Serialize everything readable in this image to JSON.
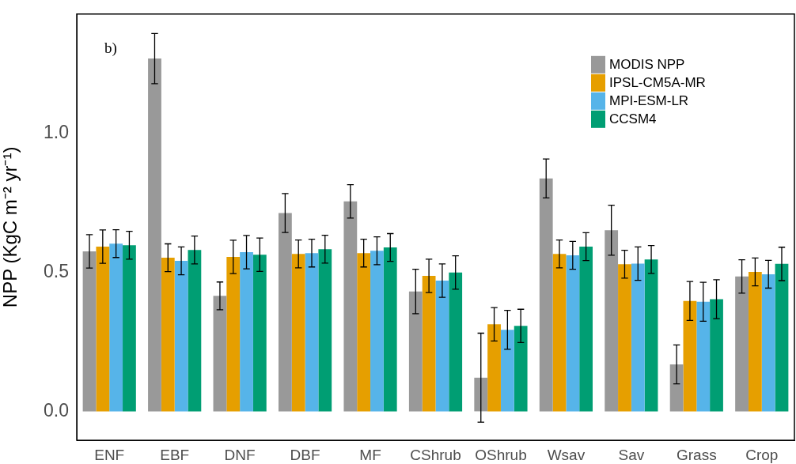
{
  "chart_data": {
    "type": "bar",
    "categories": [
      "ENF",
      "EBF",
      "DNF",
      "DBF",
      "MF",
      "CShrub",
      "OShrub",
      "Wsav",
      "Sav",
      "Grass",
      "Crop"
    ],
    "ylabel": "NPP (KgC m⁻² yr⁻¹)",
    "annotations": [
      "b)"
    ],
    "ylim": [
      -0.104,
      1.428
    ],
    "yticks": [
      {
        "value": 0,
        "label": "0.0"
      },
      {
        "value": 0.5,
        "label": "0.5"
      },
      {
        "value": 1,
        "label": "1.0"
      }
    ],
    "grid": false,
    "legend": "top right",
    "series": [
      {
        "name": "MODIS NPP",
        "color": "#999999",
        "values": [
          0.575,
          1.268,
          0.415,
          0.713,
          0.755,
          0.431,
          0.121,
          0.837,
          0.651,
          0.169,
          0.485
        ],
        "errors": [
          0.06,
          0.09,
          0.05,
          0.07,
          0.06,
          0.08,
          0.16,
          0.07,
          0.09,
          0.07,
          0.06
        ]
      },
      {
        "name": "IPSL-CM5A-MR",
        "color": "#e69f00",
        "values": [
          0.592,
          0.552,
          0.555,
          0.566,
          0.569,
          0.487,
          0.313,
          0.566,
          0.529,
          0.397,
          0.501
        ],
        "errors": [
          0.06,
          0.05,
          0.06,
          0.05,
          0.05,
          0.06,
          0.06,
          0.05,
          0.05,
          0.07,
          0.05
        ]
      },
      {
        "name": "MPI-ESM-LR",
        "color": "#56b4e9",
        "values": [
          0.603,
          0.541,
          0.572,
          0.569,
          0.577,
          0.47,
          0.293,
          0.561,
          0.531,
          0.394,
          0.493
        ],
        "errors": [
          0.05,
          0.05,
          0.06,
          0.05,
          0.05,
          0.06,
          0.07,
          0.05,
          0.06,
          0.07,
          0.05
        ]
      },
      {
        "name": "CCSM4",
        "color": "#009e73",
        "values": [
          0.597,
          0.58,
          0.563,
          0.583,
          0.589,
          0.499,
          0.307,
          0.592,
          0.546,
          0.403,
          0.53
        ],
        "errors": [
          0.05,
          0.05,
          0.06,
          0.05,
          0.05,
          0.06,
          0.06,
          0.05,
          0.05,
          0.07,
          0.06
        ]
      }
    ]
  }
}
